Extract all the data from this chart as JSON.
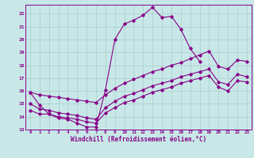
{
  "xlabel": "Windchill (Refroidissement éolien,°C)",
  "xlim": [
    -0.5,
    23.5
  ],
  "ylim": [
    13,
    22.7
  ],
  "xtick_vals": [
    0,
    1,
    2,
    3,
    4,
    5,
    6,
    7,
    8,
    9,
    10,
    11,
    12,
    13,
    14,
    15,
    16,
    17,
    18,
    19,
    20,
    21,
    22,
    23
  ],
  "xtick_labels": [
    "0",
    "1",
    "2",
    "3",
    "4",
    "5",
    "6",
    "7",
    "8",
    "9",
    "10",
    "11",
    "12",
    "13",
    "14",
    "15",
    "16",
    "17",
    "18",
    "19",
    "20",
    "21",
    "22",
    "23"
  ],
  "ytick_vals": [
    13,
    14,
    15,
    16,
    17,
    18,
    19,
    20,
    21,
    22
  ],
  "ytick_labels": [
    "13",
    "14",
    "15",
    "16",
    "17",
    "18",
    "19",
    "20",
    "21",
    "22"
  ],
  "bg_color": "#c8e8e8",
  "grid_color": "#aacccc",
  "line_color": "#880088",
  "lines": [
    {
      "x": [
        0,
        1,
        2,
        3,
        4,
        5,
        6,
        7,
        8,
        9,
        10,
        11,
        12,
        13,
        14,
        15,
        16,
        17,
        18
      ],
      "y": [
        15.9,
        14.9,
        14.2,
        13.9,
        13.8,
        13.5,
        13.2,
        13.2,
        16.1,
        20.0,
        21.2,
        21.5,
        21.9,
        22.5,
        21.7,
        21.8,
        20.8,
        19.3,
        18.3
      ]
    },
    {
      "x": [
        0,
        1,
        2,
        3,
        4,
        5,
        6,
        7,
        8,
        9,
        10,
        11,
        12,
        13,
        14,
        15,
        16,
        17,
        18,
        19,
        20,
        21,
        22,
        23
      ],
      "y": [
        14.5,
        14.2,
        14.2,
        14.0,
        13.9,
        13.8,
        13.6,
        13.5,
        14.3,
        14.7,
        15.1,
        15.3,
        15.6,
        15.9,
        16.1,
        16.3,
        16.6,
        16.8,
        17.0,
        17.2,
        16.3,
        16.0,
        16.8,
        16.7
      ]
    },
    {
      "x": [
        0,
        1,
        2,
        3,
        4,
        5,
        6,
        7,
        8,
        9,
        10,
        11,
        12,
        13,
        14,
        15,
        16,
        17,
        18,
        19,
        20,
        21,
        22,
        23
      ],
      "y": [
        15.0,
        14.6,
        14.5,
        14.3,
        14.2,
        14.1,
        13.9,
        13.8,
        14.7,
        15.2,
        15.6,
        15.8,
        16.1,
        16.4,
        16.6,
        16.8,
        17.1,
        17.3,
        17.5,
        17.7,
        16.7,
        16.5,
        17.3,
        17.1
      ]
    },
    {
      "x": [
        0,
        1,
        2,
        3,
        4,
        5,
        6,
        7,
        8,
        9,
        10,
        11,
        12,
        13,
        14,
        15,
        16,
        17,
        18,
        19,
        20,
        21,
        22,
        23
      ],
      "y": [
        15.9,
        15.7,
        15.6,
        15.5,
        15.4,
        15.3,
        15.2,
        15.1,
        15.7,
        16.2,
        16.6,
        16.9,
        17.2,
        17.5,
        17.7,
        18.0,
        18.2,
        18.5,
        18.8,
        19.1,
        17.9,
        17.7,
        18.4,
        18.3
      ]
    }
  ]
}
